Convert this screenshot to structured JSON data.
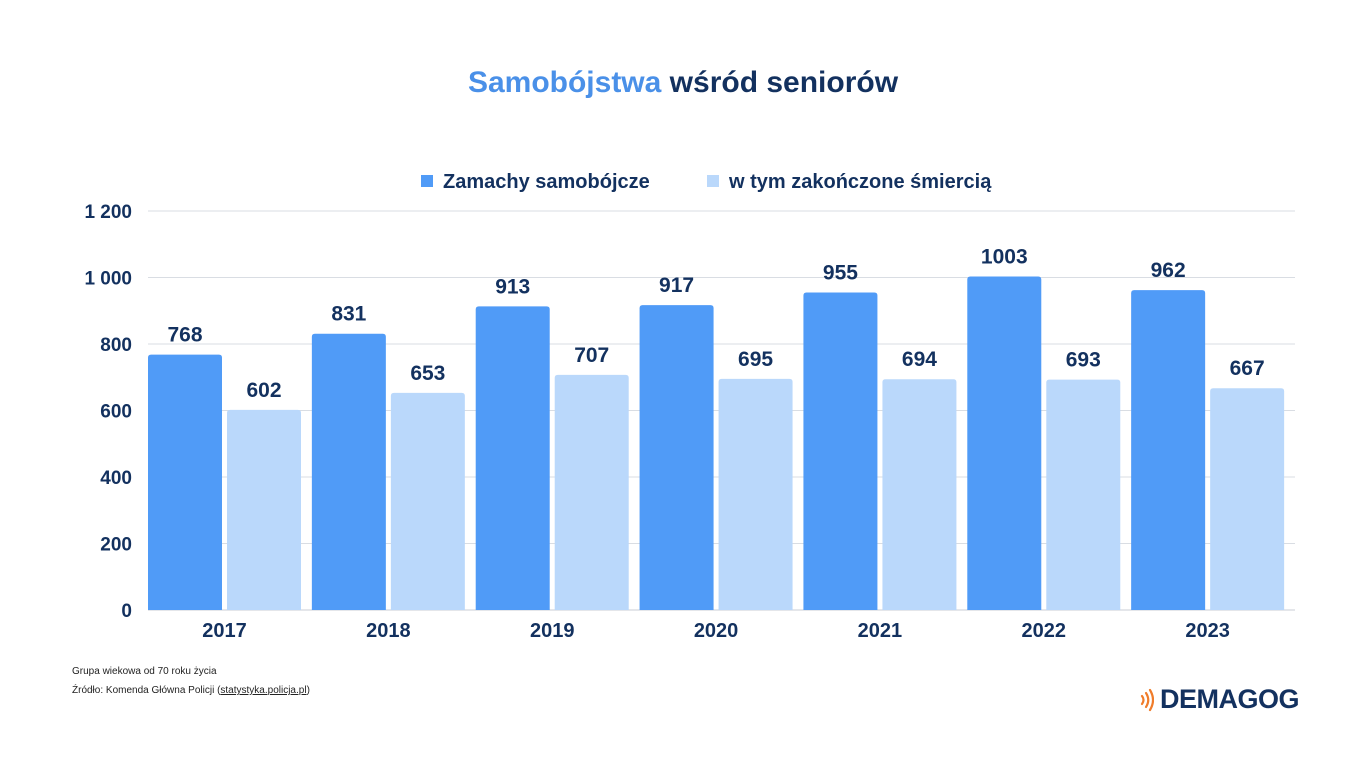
{
  "title": {
    "part1": "Samobójstwa",
    "part2": "wśród seniorów"
  },
  "colors": {
    "series1": "#509bf7",
    "series2": "#bad8fb",
    "text_dark": "#13315f",
    "title_accent": "#4a90e8",
    "grid": "#d9dde3",
    "logo_accent": "#f07c2a"
  },
  "chart_data": {
    "type": "bar",
    "categories": [
      "2017",
      "2018",
      "2019",
      "2020",
      "2021",
      "2022",
      "2023"
    ],
    "series": [
      {
        "name": "Zamachy samobójcze",
        "values": [
          768,
          831,
          913,
          917,
          955,
          1003,
          962
        ],
        "labels": [
          "768",
          "831",
          "913",
          "917",
          "955",
          "1003",
          "962"
        ]
      },
      {
        "name": "w tym zakończone śmiercią",
        "values": [
          602,
          653,
          707,
          695,
          694,
          693,
          667
        ],
        "labels": [
          "602",
          "653",
          "707",
          "695",
          "694",
          "693",
          "667"
        ]
      }
    ],
    "y_ticks": [
      "0",
      "200",
      "400",
      "600",
      "800",
      "1 000",
      "1 200"
    ],
    "ylim": [
      0,
      1200
    ],
    "grid": true,
    "legend_position": "top-center"
  },
  "footnotes": {
    "age_group": "Grupa wiekowa od 70 roku życia",
    "source_prefix": "Źródło: Komenda Główna Policji (",
    "source_link": "statystyka.policja.pl",
    "source_suffix": ")"
  },
  "logo": {
    "text": "DEMAGOG",
    "icon": "sound-waves-icon"
  }
}
